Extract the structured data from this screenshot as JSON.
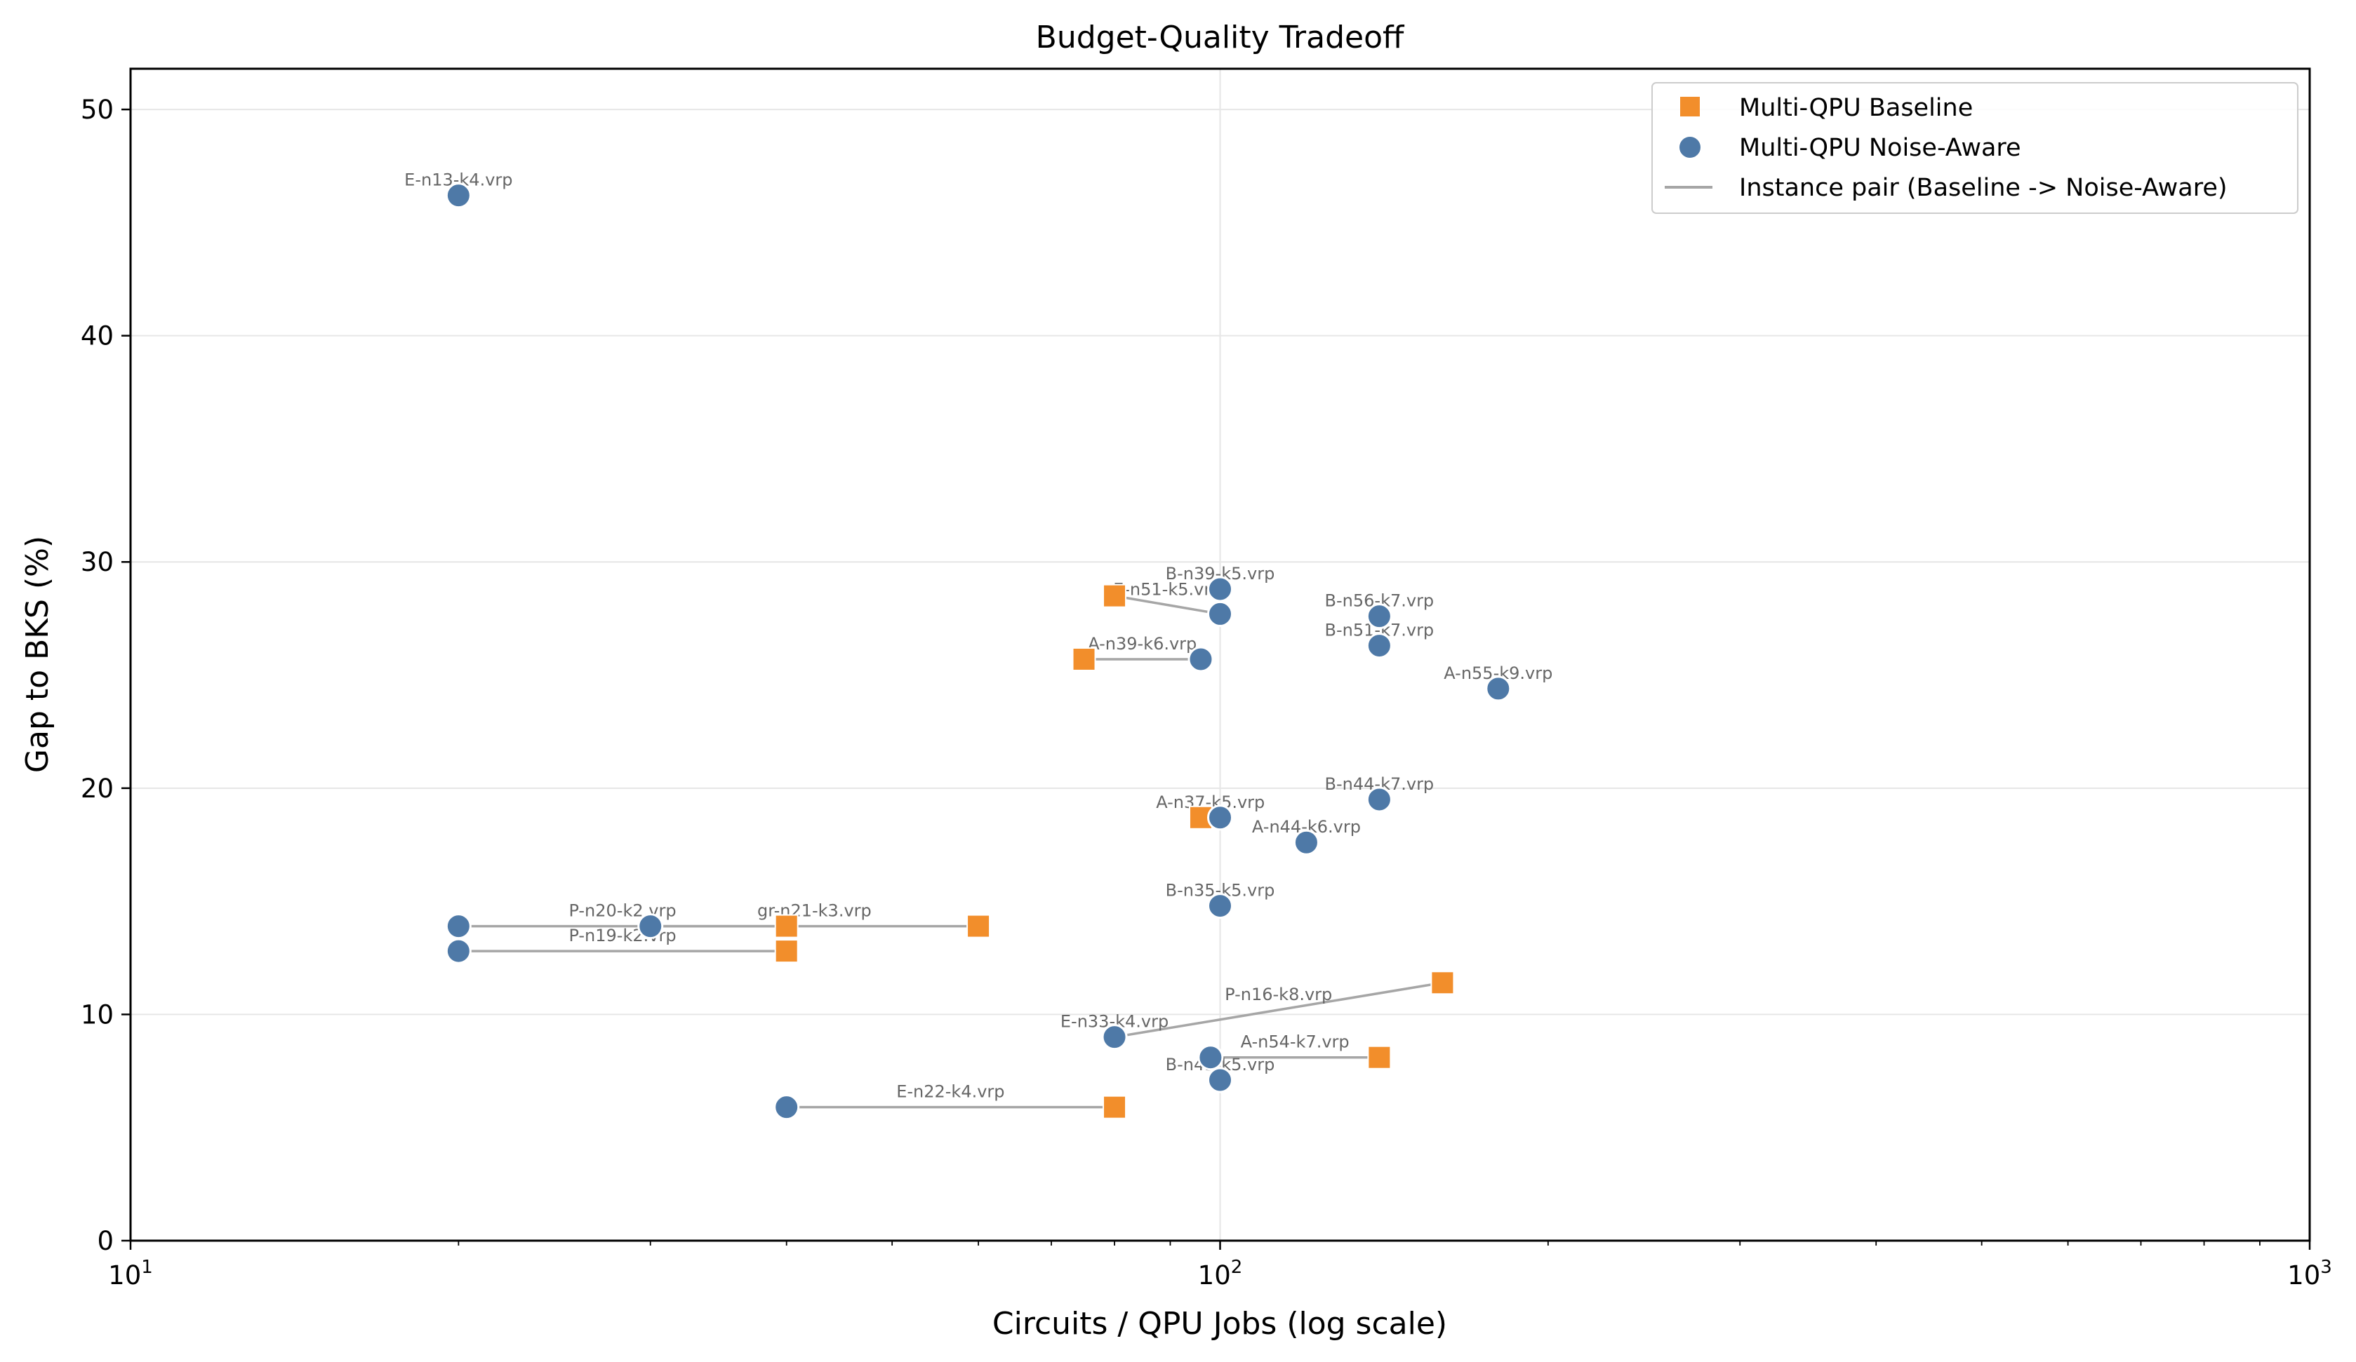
{
  "chart_data": {
    "type": "scatter",
    "title": "Budget-Quality Tradeoff",
    "xlabel": "Circuits / QPU Jobs (log scale)",
    "ylabel": "Gap to BKS (%)",
    "xscale": "log",
    "xlim": [
      10,
      1000
    ],
    "ylim": [
      0,
      51.8
    ],
    "x_ticks": [
      10,
      100,
      1000
    ],
    "x_tick_labels": [
      {
        "base": "10",
        "exp": "1"
      },
      {
        "base": "10",
        "exp": "2"
      },
      {
        "base": "10",
        "exp": "3"
      }
    ],
    "y_ticks": [
      0,
      10,
      20,
      30,
      40,
      50
    ],
    "grid": true,
    "legend_position": "top-right",
    "legend": [
      {
        "key": "baseline",
        "label": "Multi-QPU Baseline"
      },
      {
        "key": "noise",
        "label": "Multi-QPU Noise-Aware"
      },
      {
        "key": "pair",
        "label": "Instance pair (Baseline -> Noise-Aware)"
      }
    ],
    "colors": {
      "baseline": "#f28e2b",
      "noise": "#4e79a7",
      "pair": "#a6a6a6",
      "label": "#666666",
      "grid": "#e6e6e6"
    },
    "instances": [
      {
        "label": "E-n13-k4.vrp",
        "baseline": null,
        "noise": [
          20,
          46.2
        ]
      },
      {
        "label": "B-n39-k5.vrp",
        "baseline": null,
        "noise": [
          100,
          28.8
        ]
      },
      {
        "label": "E-n51-k5.vrp",
        "baseline": [
          80,
          28.5
        ],
        "noise": [
          100,
          27.7
        ]
      },
      {
        "label": "B-n56-k7.vrp",
        "baseline": null,
        "noise": [
          140,
          27.6
        ]
      },
      {
        "label": "B-n51-k7.vrp",
        "baseline": null,
        "noise": [
          140,
          26.3
        ]
      },
      {
        "label": "A-n39-k6.vrp",
        "baseline": [
          75,
          25.7
        ],
        "noise": [
          96,
          25.7
        ]
      },
      {
        "label": "A-n55-k9.vrp",
        "baseline": null,
        "noise": [
          180,
          24.4
        ]
      },
      {
        "label": "B-n44-k7.vrp",
        "baseline": null,
        "noise": [
          140,
          19.5
        ]
      },
      {
        "label": "A-n37-k5.vrp",
        "baseline": [
          96,
          18.7
        ],
        "noise": [
          100,
          18.7
        ]
      },
      {
        "label": "A-n44-k6.vrp",
        "baseline": null,
        "noise": [
          120,
          17.6
        ]
      },
      {
        "label": "B-n35-k5.vrp",
        "baseline": null,
        "noise": [
          100,
          14.8
        ]
      },
      {
        "label": "gr-n21-k3.vrp",
        "baseline": [
          60,
          13.9
        ],
        "noise": [
          30,
          13.9
        ]
      },
      {
        "label": "P-n20-k2.vrp",
        "baseline": [
          40,
          13.9
        ],
        "noise": [
          20,
          13.9
        ]
      },
      {
        "label": "P-n19-k2.vrp",
        "baseline": [
          40,
          12.8
        ],
        "noise": [
          20,
          12.8
        ]
      },
      {
        "label": "P-n16-k8.vrp",
        "baseline": [
          160,
          11.4
        ],
        "noise": [
          80,
          9.0
        ]
      },
      {
        "label": "E-n33-k4.vrp",
        "baseline": null,
        "noise": [
          80,
          9.0
        ]
      },
      {
        "label": "A-n54-k7.vrp",
        "baseline": [
          140,
          8.1
        ],
        "noise": [
          98,
          8.1
        ]
      },
      {
        "label": "B-n45-k5.vrp",
        "baseline": null,
        "noise": [
          100,
          7.1
        ]
      },
      {
        "label": "E-n22-k4.vrp",
        "baseline": [
          80,
          5.9
        ],
        "noise": [
          40,
          5.9
        ]
      }
    ]
  }
}
